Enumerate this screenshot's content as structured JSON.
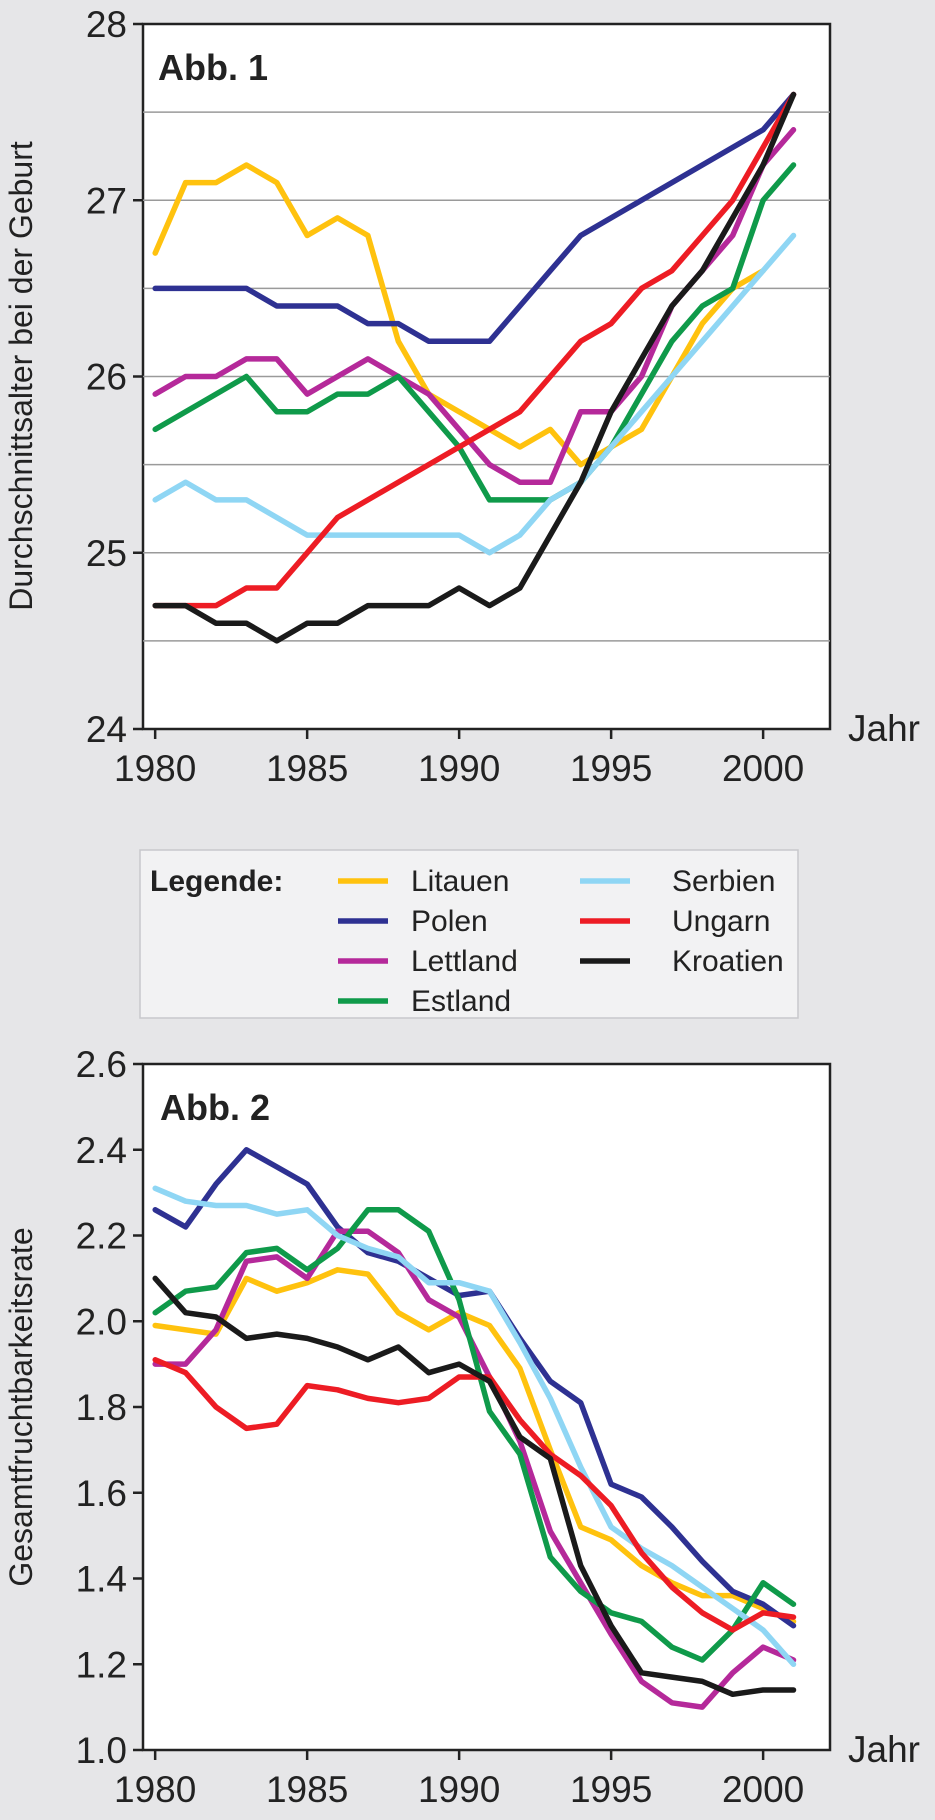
{
  "legend": {
    "title": "Legende:",
    "entries": [
      {
        "name": "Litauen",
        "color": "#ffc20e"
      },
      {
        "name": "Polen",
        "color": "#2e3192"
      },
      {
        "name": "Lettland",
        "color": "#b5299a"
      },
      {
        "name": "Estland",
        "color": "#0f9a4a"
      },
      {
        "name": "Serbien",
        "color": "#8fd6f4"
      },
      {
        "name": "Ungarn",
        "color": "#ed1c24"
      },
      {
        "name": "Kroatien",
        "color": "#1a1a1a"
      }
    ]
  },
  "chart_data": [
    {
      "type": "line",
      "title": "Abb. 1",
      "ylabel": "Durchschnittsalter bei der Geburt",
      "xlabel": "Jahr",
      "xlim": [
        1980,
        2002
      ],
      "ylim": [
        24,
        28
      ],
      "xticks": [
        "1980",
        "1985",
        "1990",
        "1995",
        "2000"
      ],
      "xtick_values": [
        1980,
        1985,
        1990,
        1995,
        2000
      ],
      "yticks": [
        "24",
        "25",
        "26",
        "27",
        "28"
      ],
      "ytick_values": [
        24,
        25,
        26,
        27,
        28
      ],
      "grid": "horizontal at 0.5 steps",
      "x": [
        1980,
        1981,
        1982,
        1983,
        1984,
        1985,
        1986,
        1987,
        1988,
        1989,
        1990,
        1991,
        1992,
        1993,
        1994,
        1995,
        1996,
        1997,
        1998,
        1999,
        2000,
        2001
      ],
      "series": [
        {
          "name": "Litauen",
          "values": [
            26.7,
            27.1,
            27.1,
            27.2,
            27.1,
            26.8,
            26.9,
            26.8,
            26.2,
            25.9,
            25.8,
            25.7,
            25.6,
            25.7,
            25.5,
            25.6,
            25.7,
            26.0,
            26.3,
            26.5,
            26.6,
            null
          ]
        },
        {
          "name": "Polen",
          "values": [
            26.5,
            26.5,
            26.5,
            26.5,
            26.4,
            26.4,
            26.4,
            26.3,
            26.3,
            26.2,
            26.2,
            26.2,
            26.4,
            26.6,
            26.8,
            26.9,
            27.0,
            27.1,
            27.2,
            27.3,
            27.4,
            27.6
          ]
        },
        {
          "name": "Lettland",
          "values": [
            25.9,
            26.0,
            26.0,
            26.1,
            26.1,
            25.9,
            26.0,
            26.1,
            26.0,
            25.9,
            25.7,
            25.5,
            25.4,
            25.4,
            25.8,
            25.8,
            26.0,
            26.4,
            26.6,
            26.8,
            27.2,
            27.4
          ]
        },
        {
          "name": "Estland",
          "values": [
            25.7,
            25.8,
            25.9,
            26.0,
            25.8,
            25.8,
            25.9,
            25.9,
            26.0,
            25.8,
            25.6,
            25.3,
            25.3,
            25.3,
            25.4,
            25.6,
            25.9,
            26.2,
            26.4,
            26.5,
            27.0,
            27.2
          ]
        },
        {
          "name": "Serbien",
          "values": [
            25.3,
            25.4,
            25.3,
            25.3,
            25.2,
            25.1,
            25.1,
            25.1,
            25.1,
            25.1,
            25.1,
            25.0,
            25.1,
            25.3,
            25.4,
            25.6,
            25.8,
            26.0,
            26.2,
            26.4,
            26.6,
            26.8
          ]
        },
        {
          "name": "Ungarn",
          "values": [
            24.7,
            24.7,
            24.7,
            24.8,
            24.8,
            25.0,
            25.2,
            25.3,
            25.4,
            25.5,
            25.6,
            25.7,
            25.8,
            26.0,
            26.2,
            26.3,
            26.5,
            26.6,
            26.8,
            27.0,
            27.3,
            27.6
          ]
        },
        {
          "name": "Kroatien",
          "values": [
            24.7,
            24.7,
            24.6,
            24.6,
            24.5,
            24.6,
            24.6,
            24.7,
            24.7,
            24.7,
            24.8,
            24.7,
            24.8,
            25.1,
            25.4,
            25.8,
            26.1,
            26.4,
            26.6,
            26.9,
            27.2,
            27.6
          ]
        }
      ]
    },
    {
      "type": "line",
      "title": "Abb. 2",
      "ylabel": "Gesamtfruchtbarkeitsrate",
      "xlabel": "Jahr",
      "xlim": [
        1980,
        2002
      ],
      "ylim": [
        1.0,
        2.6
      ],
      "xticks": [
        "1980",
        "1985",
        "1990",
        "1995",
        "2000"
      ],
      "xtick_values": [
        1980,
        1985,
        1990,
        1995,
        2000
      ],
      "yticks": [
        "1.0",
        "1.2",
        "1.4",
        "1.6",
        "1.8",
        "2.0",
        "2.2",
        "2.4",
        "2.6"
      ],
      "ytick_values": [
        1.0,
        1.2,
        1.4,
        1.6,
        1.8,
        2.0,
        2.2,
        2.4,
        2.6
      ],
      "grid": "none",
      "x": [
        1980,
        1981,
        1982,
        1983,
        1984,
        1985,
        1986,
        1987,
        1988,
        1989,
        1990,
        1991,
        1992,
        1993,
        1994,
        1995,
        1996,
        1997,
        1998,
        1999,
        2000,
        2001
      ],
      "series": [
        {
          "name": "Litauen",
          "values": [
            1.99,
            1.98,
            1.97,
            2.1,
            2.07,
            2.09,
            2.12,
            2.11,
            2.02,
            1.98,
            2.02,
            1.99,
            1.89,
            1.7,
            1.52,
            1.49,
            1.43,
            1.39,
            1.36,
            1.36,
            1.33,
            1.3
          ]
        },
        {
          "name": "Polen",
          "values": [
            2.26,
            2.22,
            2.32,
            2.4,
            2.36,
            2.32,
            2.22,
            2.16,
            2.14,
            2.1,
            2.06,
            2.07,
            1.96,
            1.86,
            1.81,
            1.62,
            1.59,
            1.52,
            1.44,
            1.37,
            1.34,
            1.29
          ]
        },
        {
          "name": "Lettland",
          "values": [
            1.9,
            1.9,
            1.98,
            2.14,
            2.15,
            2.1,
            2.21,
            2.21,
            2.16,
            2.05,
            2.01,
            1.87,
            1.72,
            1.51,
            1.39,
            1.27,
            1.16,
            1.11,
            1.1,
            1.18,
            1.24,
            1.21
          ]
        },
        {
          "name": "Estland",
          "values": [
            2.02,
            2.07,
            2.08,
            2.16,
            2.17,
            2.12,
            2.17,
            2.26,
            2.26,
            2.21,
            2.05,
            1.79,
            1.69,
            1.45,
            1.37,
            1.32,
            1.3,
            1.24,
            1.21,
            1.28,
            1.39,
            1.34
          ]
        },
        {
          "name": "Serbien",
          "values": [
            2.31,
            2.28,
            2.27,
            2.27,
            2.25,
            2.26,
            2.2,
            2.17,
            2.15,
            2.09,
            2.09,
            2.07,
            1.95,
            1.82,
            1.66,
            1.52,
            1.47,
            1.43,
            1.38,
            1.33,
            1.28,
            1.2
          ]
        },
        {
          "name": "Ungarn",
          "values": [
            1.91,
            1.88,
            1.8,
            1.75,
            1.76,
            1.85,
            1.84,
            1.82,
            1.81,
            1.82,
            1.87,
            1.87,
            1.77,
            1.69,
            1.64,
            1.57,
            1.46,
            1.38,
            1.32,
            1.28,
            1.32,
            1.31
          ]
        },
        {
          "name": "Kroatien",
          "values": [
            2.1,
            2.02,
            2.01,
            1.96,
            1.97,
            1.96,
            1.94,
            1.91,
            1.94,
            1.88,
            1.9,
            1.86,
            1.73,
            1.68,
            1.43,
            1.29,
            1.18,
            1.17,
            1.16,
            1.13,
            1.14,
            1.14
          ]
        }
      ]
    }
  ]
}
